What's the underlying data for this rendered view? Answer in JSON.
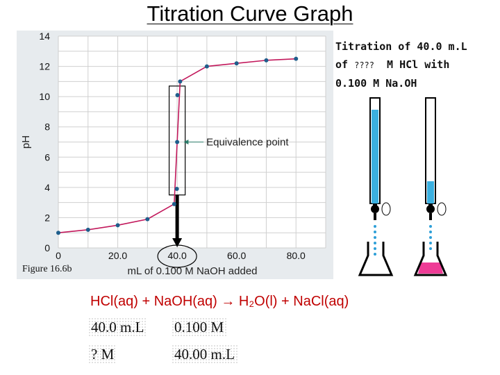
{
  "slide": {
    "title": "Titration Curve Graph"
  },
  "chart_data": {
    "type": "line",
    "xlabel": "mL of 0.100 M NaOH added",
    "ylabel": "pH",
    "xlim": [
      0,
      90
    ],
    "ylim": [
      0,
      14
    ],
    "x_ticks": [
      "0",
      "20.0",
      "40.0",
      "60.0",
      "80.0"
    ],
    "y_ticks": [
      "0",
      "2",
      "4",
      "6",
      "8",
      "10",
      "12",
      "14"
    ],
    "grid": true,
    "series": [
      {
        "color": "#c2185b",
        "x": [
          0,
          10,
          20,
          30,
          39,
          40,
          41,
          50,
          60,
          70,
          80
        ],
        "y": [
          1.0,
          1.2,
          1.5,
          1.9,
          2.9,
          7.0,
          11.0,
          12.0,
          12.2,
          12.4,
          12.5
        ]
      },
      {
        "color": "#1f5e8c",
        "x": [
          0,
          10,
          20,
          30,
          39,
          39.9,
          40,
          40.1,
          41,
          50,
          60,
          70,
          80
        ],
        "y": [
          1.0,
          1.2,
          1.5,
          1.9,
          2.9,
          3.9,
          7.0,
          10.1,
          11.0,
          12.0,
          12.2,
          12.4,
          12.5
        ]
      }
    ],
    "annotation": {
      "text": "Equivalence point",
      "x": 40,
      "y": 7.0
    },
    "figure_label": "Figure 16.6b"
  },
  "description": {
    "line1": "Titration of 40.0 m.L",
    "line2_prefix": "of ",
    "line2_unknown": "????",
    "line2_suffix": "  M HCl with",
    "line3": "0.100 M Na.OH"
  },
  "equation": {
    "text": "HCl(aq) + NaOH(aq) → H₂O(l) + NaCl(aq)"
  },
  "table": {
    "r1c1": "40.0 m.L",
    "r1c2": "0.100 M",
    "r2c1": "? M",
    "r2c2": "40.00 m.L"
  },
  "colors": {
    "curve": "#c2185b",
    "points": "#1f5e8c",
    "solution_blue": "#3bb0e0",
    "flask_pink": "#ee3c96"
  }
}
